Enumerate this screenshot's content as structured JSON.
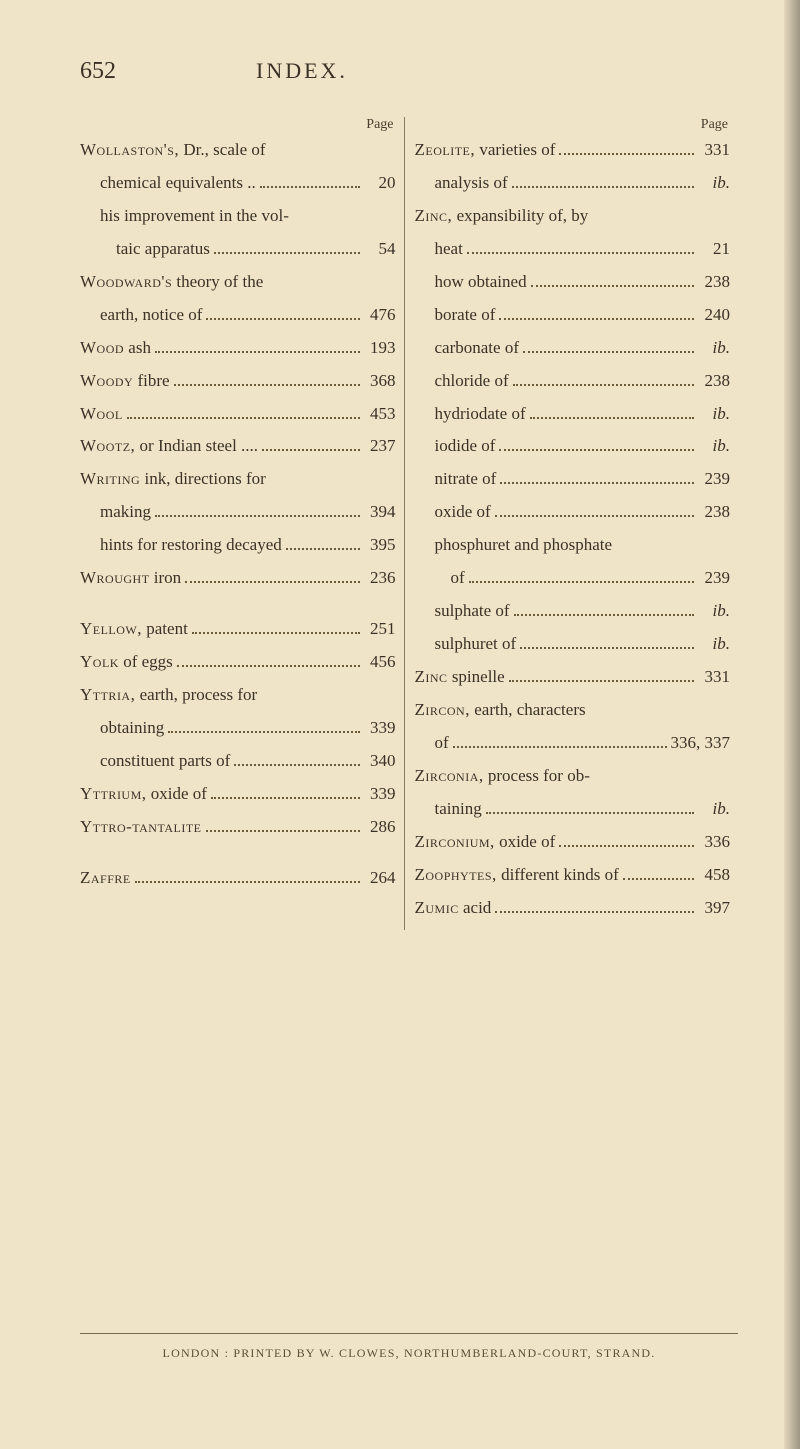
{
  "header": {
    "page_number": "652",
    "title": "INDEX."
  },
  "columns": {
    "left": {
      "header": "Page",
      "entries": [
        {
          "indent": 0,
          "prefix_sc": "Wollaston's,",
          "rest": " Dr., scale of",
          "page": "",
          "nodots": true
        },
        {
          "indent": 1,
          "rest": "chemical equivalents ..",
          "page": "20"
        },
        {
          "indent": 1,
          "rest": "his improvement in the vol-",
          "page": "",
          "nodots": true
        },
        {
          "indent": 2,
          "rest": "taic apparatus",
          "page": "54"
        },
        {
          "indent": 0,
          "prefix_sc": "Woodward's",
          "rest": " theory of the",
          "page": "",
          "nodots": true
        },
        {
          "indent": 1,
          "rest": "earth, notice of",
          "page": "476"
        },
        {
          "indent": 0,
          "prefix_sc": "Wood",
          "rest": " ash",
          "page": "193"
        },
        {
          "indent": 0,
          "prefix_sc": "Woody",
          "rest": " fibre",
          "page": "368"
        },
        {
          "indent": 0,
          "prefix_sc": "Wool",
          "rest": "",
          "page": "453"
        },
        {
          "indent": 0,
          "prefix_sc": "Wootz,",
          "rest": " or Indian steel ....",
          "page": "237"
        },
        {
          "indent": 0,
          "prefix_sc": "Writing",
          "rest": " ink, directions for",
          "page": "",
          "nodots": true
        },
        {
          "indent": 1,
          "rest": "making",
          "page": "394"
        },
        {
          "indent": 1,
          "rest": "hints for restoring decayed",
          "page": "395"
        },
        {
          "indent": 0,
          "prefix_sc": "Wrought",
          "rest": " iron",
          "page": "236"
        },
        {
          "spacer": true
        },
        {
          "indent": 0,
          "prefix_sc": "Yellow,",
          "rest": " patent",
          "page": "251"
        },
        {
          "indent": 0,
          "prefix_sc": "Yolk",
          "rest": " of eggs",
          "page": "456"
        },
        {
          "indent": 0,
          "prefix_sc": "Yttria,",
          "rest": " earth, process for",
          "page": "",
          "nodots": true
        },
        {
          "indent": 1,
          "rest": "obtaining",
          "page": "339"
        },
        {
          "indent": 1,
          "rest": "constituent parts of",
          "page": "340"
        },
        {
          "indent": 0,
          "prefix_sc": "Yttrium,",
          "rest": " oxide of",
          "page": "339"
        },
        {
          "indent": 0,
          "prefix_sc": "Yttro-tantalite",
          "rest": "",
          "page": "286"
        },
        {
          "spacer": true
        },
        {
          "indent": 0,
          "prefix_sc": "Zaffre",
          "rest": "",
          "page": "264"
        }
      ]
    },
    "right": {
      "header": "Page",
      "entries": [
        {
          "indent": 0,
          "prefix_sc": "Zeolite,",
          "rest": " varieties of",
          "page": "331"
        },
        {
          "indent": 1,
          "rest": "analysis of",
          "page": "ib.",
          "ib": true
        },
        {
          "indent": 0,
          "prefix_sc": "Zinc,",
          "rest": " expansibility of, by",
          "page": "",
          "nodots": true
        },
        {
          "indent": 1,
          "rest": "heat",
          "page": "21"
        },
        {
          "indent": 1,
          "rest": "how obtained",
          "page": "238"
        },
        {
          "indent": 1,
          "rest": "borate of",
          "page": "240"
        },
        {
          "indent": 1,
          "rest": "carbonate of",
          "page": "ib.",
          "ib": true
        },
        {
          "indent": 1,
          "rest": "chloride of",
          "page": "238"
        },
        {
          "indent": 1,
          "rest": "hydriodate of",
          "page": "ib.",
          "ib": true
        },
        {
          "indent": 1,
          "rest": "iodide of",
          "page": "ib.",
          "ib": true
        },
        {
          "indent": 1,
          "rest": "nitrate of",
          "page": "239"
        },
        {
          "indent": 1,
          "rest": "oxide of",
          "page": "238"
        },
        {
          "indent": 1,
          "rest": "phosphuret and phosphate",
          "page": "",
          "nodots": true
        },
        {
          "indent": 2,
          "rest": "of",
          "page": "239"
        },
        {
          "indent": 1,
          "rest": "sulphate of",
          "page": "ib.",
          "ib": true
        },
        {
          "indent": 1,
          "rest": "sulphuret of",
          "page": "ib.",
          "ib": true
        },
        {
          "indent": 0,
          "prefix_sc": "Zinc",
          "rest": " spinelle",
          "page": "331"
        },
        {
          "indent": 0,
          "prefix_sc": "Zircon,",
          "rest": " earth, characters",
          "page": "",
          "nodots": true
        },
        {
          "indent": 1,
          "rest": "of",
          "page": "336, 337"
        },
        {
          "indent": 0,
          "prefix_sc": "Zirconia,",
          "rest": " process for ob-",
          "page": "",
          "nodots": true
        },
        {
          "indent": 1,
          "rest": "taining",
          "page": "ib.",
          "ib": true
        },
        {
          "indent": 0,
          "prefix_sc": "Zirconium,",
          "rest": " oxide of",
          "page": "336"
        },
        {
          "indent": 0,
          "prefix_sc": "Zoophytes,",
          "rest": " different kinds of",
          "page": "458"
        },
        {
          "indent": 0,
          "prefix_sc": "Zumic",
          "rest": " acid",
          "page": "397"
        }
      ]
    }
  },
  "footer": "LONDON : PRINTED BY W. CLOWES, NORTHUMBERLAND-COURT, STRAND."
}
